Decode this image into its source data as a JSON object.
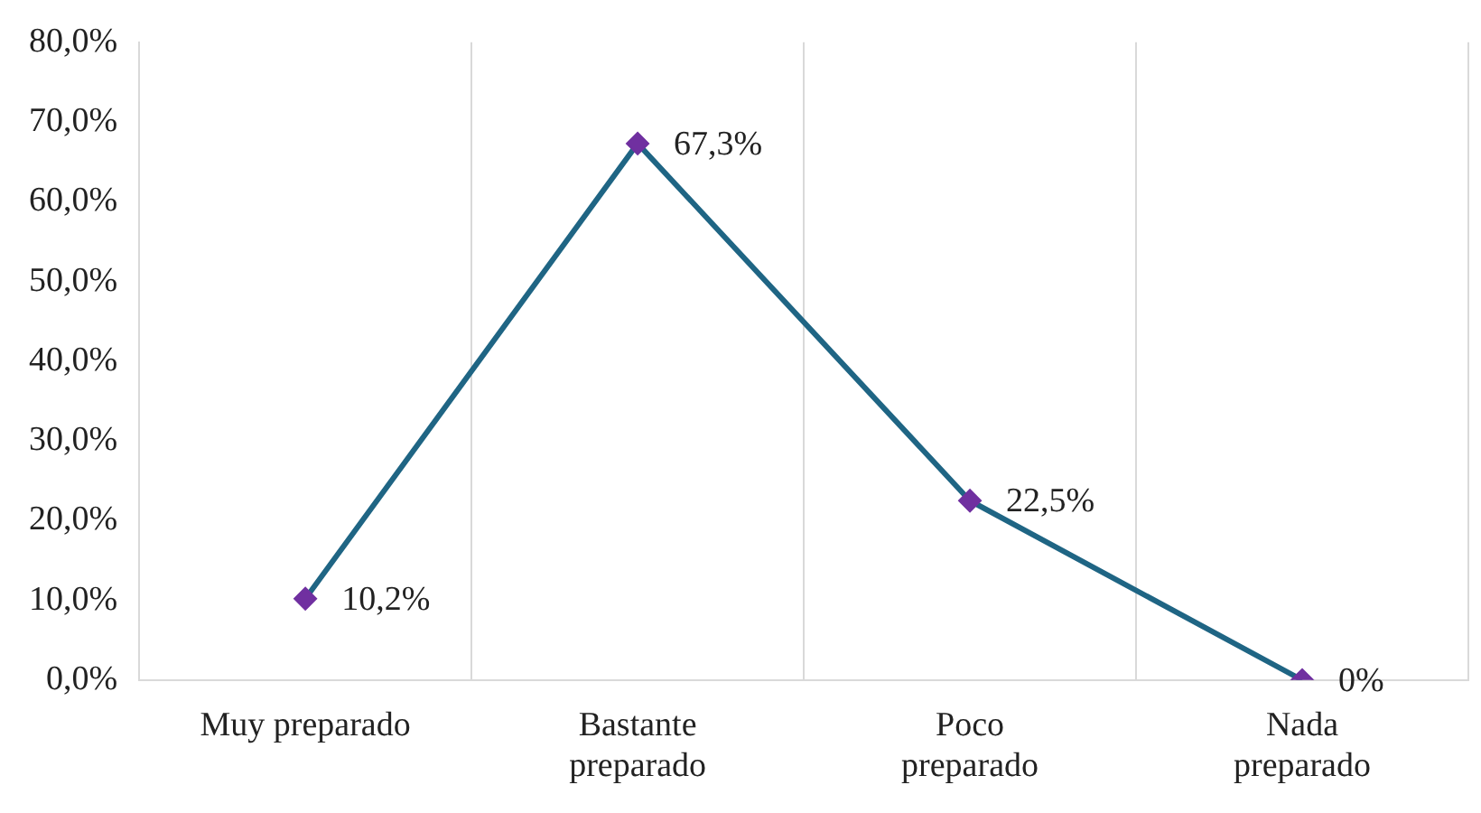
{
  "chart_data": {
    "type": "line",
    "categories": [
      "Muy preparado",
      "Bastante preparado",
      "Poco preparado",
      "Nada preparado"
    ],
    "series": [
      {
        "color": "#1f6584",
        "colors": [
          "#7030a0",
          "#7030a0",
          "#7030a0",
          "#7030a0"
        ],
        "values": [
          10.2,
          67.3,
          22.5,
          0
        ],
        "value_labels": [
          "10,2%",
          "67,3%",
          "22,5%",
          "0%"
        ]
      }
    ],
    "ylim": [
      0,
      80
    ],
    "yticks": [
      {
        "value": 0,
        "label": "0,0%"
      },
      {
        "value": 10,
        "label": "10,0%"
      },
      {
        "value": 20,
        "label": "20,0%"
      },
      {
        "value": 30,
        "label": "30,0%"
      },
      {
        "value": 40,
        "label": "40,0%"
      },
      {
        "value": 50,
        "label": "50,0%"
      },
      {
        "value": 60,
        "label": "60,0%"
      },
      {
        "value": 70,
        "label": "70,0%"
      },
      {
        "value": 80,
        "label": "80,0%"
      }
    ],
    "grid": "x",
    "legend": false,
    "marker": "diamond",
    "line_style": "solid"
  }
}
